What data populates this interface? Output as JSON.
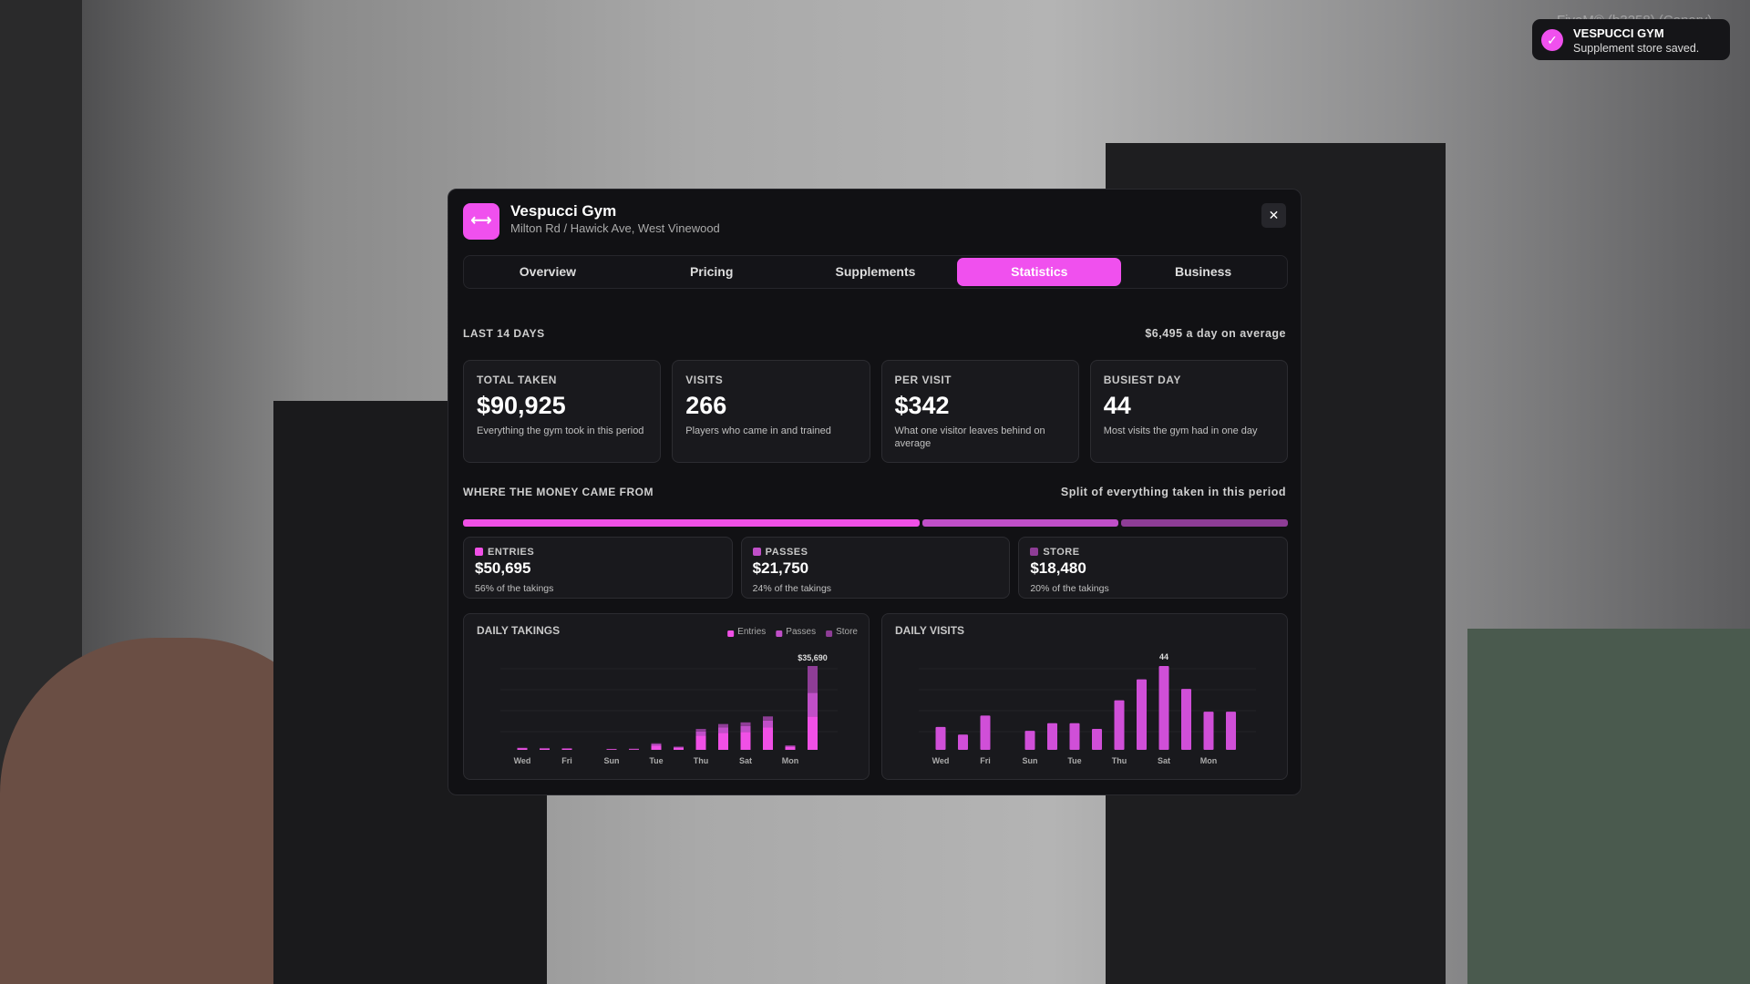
{
  "watermark": "FiveM® (b3258) (Canary)",
  "toast": {
    "title": "VESPUCCI GYM",
    "message": "Supplement store saved."
  },
  "header": {
    "title": "Vespucci Gym",
    "subtitle": "Milton Rd / Hawick Ave, West Vinewood"
  },
  "tabs": [
    "Overview",
    "Pricing",
    "Supplements",
    "Statistics",
    "Business"
  ],
  "period": {
    "label": "LAST 14 DAYS",
    "average": "$6,495 a day on average"
  },
  "stats": [
    {
      "label": "TOTAL TAKEN",
      "value": "$90,925",
      "note": "Everything the gym took in this period"
    },
    {
      "label": "VISITS",
      "value": "266",
      "note": "Players who came in and trained"
    },
    {
      "label": "PER VISIT",
      "value": "$342",
      "note": "What one visitor leaves behind on average"
    },
    {
      "label": "BUSIEST DAY",
      "value": "44",
      "note": "Most visits the gym had in one day"
    }
  ],
  "split": {
    "title": "WHERE THE MONEY CAME FROM",
    "note": "Split of everything taken in this period",
    "parts": [
      {
        "name": "ENTRIES",
        "value": 50695,
        "value_label": "$50,695",
        "share": "56% of the takings",
        "color": "#f050e6"
      },
      {
        "name": "PASSES",
        "value": 21750,
        "value_label": "$21,750",
        "share": "24% of the takings",
        "color": "#c04fc8"
      },
      {
        "name": "STORE",
        "value": 18480,
        "value_label": "$18,480",
        "share": "20% of the takings",
        "color": "#8e3d96"
      }
    ]
  },
  "charts": [
    {
      "type": "bar",
      "stacked": true,
      "title": "DAILY TAKINGS",
      "categories": [
        "Wed",
        null,
        "Fri",
        null,
        "Sun",
        null,
        "Tue",
        null,
        "Thu",
        null,
        "Sat",
        null,
        "Mon",
        null
      ],
      "series": [
        {
          "name": "Entries",
          "color": "#f050e6",
          "values": [
            600,
            500,
            500,
            0,
            300,
            300,
            1800,
            900,
            6000,
            7200,
            7600,
            9500,
            1300,
            14195
          ]
        },
        {
          "name": "Passes",
          "color": "#c04fc8",
          "values": [
            200,
            200,
            100,
            0,
            100,
            100,
            600,
            300,
            1800,
            2300,
            2500,
            3000,
            400,
            10150
          ]
        },
        {
          "name": "Store",
          "color": "#8e3d96",
          "values": [
            100,
            100,
            100,
            0,
            0,
            100,
            400,
            200,
            1100,
            1500,
            1600,
            1735,
            200,
            11345
          ]
        }
      ],
      "peak_label": "$35,690"
    },
    {
      "type": "bar",
      "title": "DAILY VISITS",
      "color": "#d04fd8",
      "categories": [
        "Wed",
        null,
        "Fri",
        null,
        "Sun",
        null,
        "Tue",
        null,
        "Thu",
        null,
        "Sat",
        null,
        "Mon",
        null
      ],
      "values": [
        12,
        8,
        18,
        0,
        10,
        14,
        14,
        11,
        26,
        37,
        44,
        32,
        20,
        20
      ],
      "label_peak": true
    }
  ]
}
